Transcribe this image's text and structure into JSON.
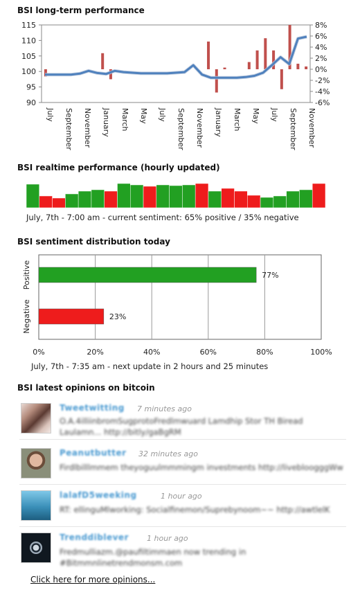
{
  "sections": {
    "longterm_title": "BSI long-term performance",
    "realtime_title": "BSI realtime performance (hourly updated)",
    "distribution_title": "BSI sentiment distribution today",
    "opinions_title": "BSI latest opinions on bitcoin"
  },
  "realtime_status": "July, 7th - 7:00 am - current sentiment: 65% positive / 35% negative",
  "distribution_status": "July, 7th - 7:35 am - next update in 2 hours and 25 minutes",
  "colors": {
    "positive": "#22a022",
    "negative": "#ee1c1c",
    "line": "#4f81bd",
    "bar": "#c0504d"
  },
  "chart_data": [
    {
      "type": "line",
      "title": "BSI long-term performance",
      "x_tick_labels": [
        "July",
        "September",
        "November",
        "January",
        "March",
        "May",
        "July",
        "September",
        "November",
        "January",
        "March",
        "May",
        "July",
        "September",
        "November"
      ],
      "y_left_ticks": [
        90,
        95,
        100,
        105,
        110,
        115
      ],
      "y_right_ticks": [
        "8%",
        "6%",
        "4%",
        "2%",
        "0%",
        "-2%",
        "-4%",
        "-6%"
      ],
      "ylim_left": [
        90,
        115
      ],
      "ylim_right": [
        -6,
        8
      ],
      "series": [
        {
          "kind": "line",
          "values": [
            99.0,
            99.0,
            99.0,
            99.0,
            99.3,
            100.2,
            99.5,
            99.2,
            100.2,
            99.8,
            99.6,
            99.4,
            99.4,
            99.4,
            99.4,
            99.6,
            99.8,
            102.0,
            99.0,
            98.0,
            98.0,
            98.0,
            98.0,
            98.2,
            98.6,
            99.6,
            102.0,
            104.6,
            102.4,
            110.6,
            111.2
          ]
        },
        {
          "kind": "bar",
          "values": [
            -1.3,
            0,
            0,
            0,
            0,
            0,
            0,
            2.9,
            -1.8,
            0,
            0,
            0,
            0,
            0,
            0,
            0,
            0,
            0,
            0,
            0,
            5.0,
            -4.2,
            0.3,
            0,
            0,
            1.3,
            3.4,
            5.6,
            3.4,
            -3.6,
            8.0,
            1.0,
            0.5
          ]
        }
      ]
    },
    {
      "type": "bar",
      "title": "BSI realtime performance (hourly updated)",
      "series": [
        {
          "values": [
            "pos",
            "neg",
            "neg",
            "pos",
            "pos",
            "pos",
            "neg",
            "pos",
            "pos",
            "neg",
            "pos",
            "pos",
            "pos",
            "neg",
            "pos",
            "neg",
            "neg",
            "neg",
            "pos",
            "pos",
            "pos",
            "pos",
            "neg"
          ]
        }
      ]
    },
    {
      "type": "bar",
      "title": "BSI sentiment distribution today",
      "categories": [
        "Positive",
        "Negative"
      ],
      "values": [
        77,
        23
      ],
      "value_labels": [
        "77%",
        "23%"
      ],
      "x_ticks": [
        "0%",
        "20%",
        "40%",
        "60%",
        "80%",
        "100%"
      ],
      "xlim": [
        0,
        100
      ]
    }
  ],
  "opinions": [
    {
      "user": "Tweetwitting",
      "time": "7 minutes ago",
      "text": "O.A.4illiinbromSugprotoFredlmwuard Lamdhip Stor TH Biread",
      "text2": "Laulamn... http://bitly/gaBgRM"
    },
    {
      "user": "Peanutbutter",
      "time": "32 minutes ago",
      "text": "Firdlbilllmmem theyoguulmmmingm investments http://livebloogggWw"
    },
    {
      "user": "lalafD5weeking",
      "time": "1 hour ago",
      "text": "RT: ellinguMlworking: Socialfinemon/Suprebynoom~~ http://awtlelK"
    },
    {
      "user": "Trenddiblever",
      "time": "1 hour ago",
      "text": "Fredmulliazm.@paufiltimmaen now trending in #Bitmmnlinetrendmonsm.com"
    }
  ],
  "more_link": "Click here for more opinions..."
}
